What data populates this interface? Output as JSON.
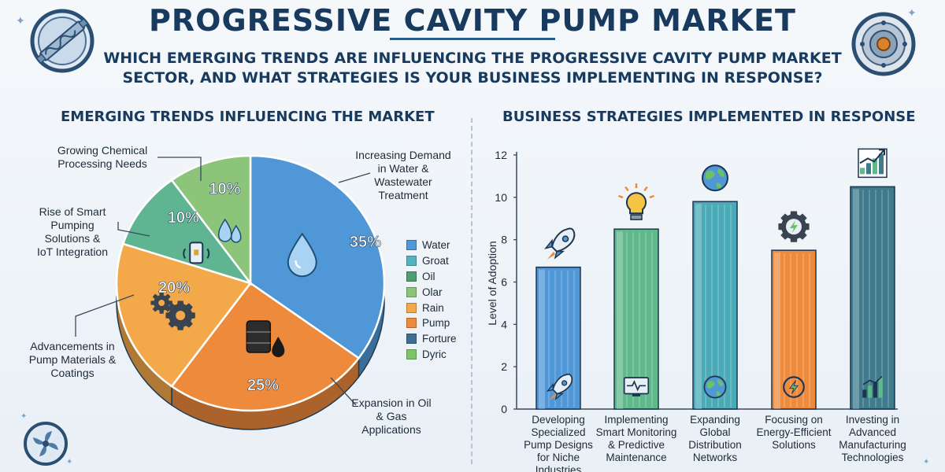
{
  "header": {
    "title": "PROGRESSIVE CAVITY PUMP MARKET",
    "subtitle": "WHICH EMERGING TRENDS ARE INFLUENCING THE PROGRESSIVE CAVITY PUMP MARKET SECTOR, AND WHAT STRATEGIES IS YOUR BUSINESS IMPLEMENTING IN RESPONSE?"
  },
  "icons": {
    "top_left": "pump-badge-icon",
    "top_right": "pump-rotor-badge-icon",
    "bottom_left": "impeller-badge-icon"
  },
  "chart_data": [
    {
      "type": "pie",
      "title": "EMERGING TRENDS INFLUENCING THE MARKET",
      "slices": [
        {
          "label": "Increasing Demand in Water & Wastewater Treatment",
          "value": 35,
          "display": "35%",
          "color": "#4f97d6",
          "icon": "water-drop-icon"
        },
        {
          "label": "Expansion in Oil & Gas Applications",
          "value": 25,
          "display": "25%",
          "color": "#ee8a3c",
          "icon": "oil-barrel-icon"
        },
        {
          "label": "Advancements in Pump Materials & Coatings",
          "value": 20,
          "display": "20%",
          "color": "#f3a84a",
          "icon": "gears-icon"
        },
        {
          "label": "Rise of Smart Pumping Solutions & IoT Integration",
          "value": 10,
          "display": "10%",
          "color": "#5fb592",
          "icon": "smartphone-icon"
        },
        {
          "label": "Growing Chemical Processing Needs",
          "value": 10,
          "display": "10%",
          "color": "#8cc47a",
          "icon": "chemical-drops-icon"
        }
      ],
      "legend": {
        "placement": "right",
        "entries": [
          {
            "label": "Water",
            "color": "#4f97d6"
          },
          {
            "label": "Groat",
            "color": "#55b3c1"
          },
          {
            "label": "Oil",
            "color": "#4e9e72"
          },
          {
            "label": "Olar",
            "color": "#8cc47a"
          },
          {
            "label": "Rain",
            "color": "#f3a84a"
          },
          {
            "label": "Pump",
            "color": "#ee8a3c"
          },
          {
            "label": "Forture",
            "color": "#3f6e8f"
          },
          {
            "label": "Dyric",
            "color": "#7cc36a"
          }
        ]
      }
    },
    {
      "type": "bar",
      "title": "BUSINESS STRATEGIES IMPLEMENTED IN RESPONSE",
      "ylabel": "Level of Adoption",
      "xlabel": "",
      "ylim": [
        0,
        12
      ],
      "yticks": [
        "0",
        "2",
        "4",
        "6",
        "8",
        "10",
        "12"
      ],
      "grid": false,
      "categories": [
        "Developing Specialized Pump Designs for Niche Industries",
        "Implementing Smart Monitoring & Predictive Maintenance",
        "Expanding Global Distribution Networks",
        "Focusing on Energy-Efficient Solutions",
        "Investing in Advanced Manufacturing Technologies"
      ],
      "values": [
        6.7,
        8.5,
        9.8,
        7.5,
        10.5
      ],
      "colors": [
        "#4f97d6",
        "#5fb98a",
        "#4aaab7",
        "#ee8a3c",
        "#3f7b8c"
      ],
      "top_icons": [
        "rocket-icon",
        "lightbulb-icon",
        "globe-icon",
        "energy-gear-icon",
        "growth-chart-icon"
      ],
      "inner_icons": [
        "rocket-icon",
        "monitor-pulse-icon",
        "globe-icon",
        "energy-icon",
        "bar-chart-icon"
      ]
    }
  ]
}
